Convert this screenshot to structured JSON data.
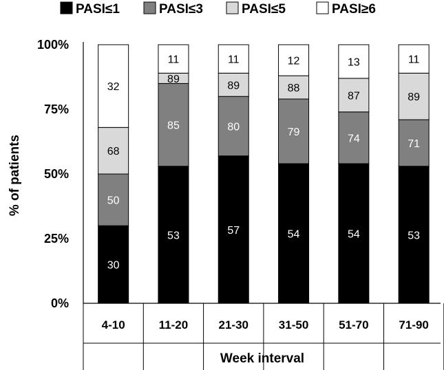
{
  "chart_data": {
    "type": "bar",
    "stacked": true,
    "title": "",
    "xlabel": "Week interval",
    "ylabel": "% of patients",
    "ylim": [
      0,
      100
    ],
    "yticks": [
      {
        "value": 0,
        "label": "0%"
      },
      {
        "value": 25,
        "label": "25%"
      },
      {
        "value": 50,
        "label": "50%"
      },
      {
        "value": 75,
        "label": "75%"
      },
      {
        "value": 100,
        "label": "100%"
      }
    ],
    "categories": [
      "4-10",
      "11-20",
      "21-30",
      "31-50",
      "51-70",
      "71-90"
    ],
    "legend_position": "top",
    "series": [
      {
        "name": "PASI≤1",
        "color": "#000000",
        "label_color": "#ffffff",
        "cumulative": [
          30,
          53,
          57,
          54,
          54,
          53
        ],
        "labels": [
          "30",
          "53",
          "57",
          "54",
          "54",
          "53"
        ]
      },
      {
        "name": "PASI≤3",
        "color": "#808080",
        "label_color": "#ffffff",
        "cumulative": [
          50,
          85,
          80,
          79,
          74,
          71
        ],
        "labels": [
          "50",
          "85",
          "80",
          "79",
          "74",
          "71"
        ]
      },
      {
        "name": "PASI≤5",
        "color": "#d9d9d9",
        "label_color": "#000000",
        "cumulative": [
          68,
          89,
          89,
          88,
          87,
          89
        ],
        "labels": [
          "68",
          "89",
          "89",
          "88",
          "87",
          "89"
        ]
      },
      {
        "name": "PASI≥6",
        "color": "#ffffff",
        "label_color": "#000000",
        "cumulative": [
          100,
          100,
          100,
          100,
          100,
          100
        ],
        "labels": [
          "32",
          "11",
          "11",
          "12",
          "13",
          "11"
        ]
      }
    ]
  }
}
